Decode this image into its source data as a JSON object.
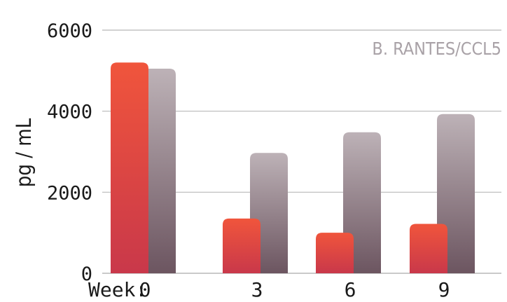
{
  "chart_data": {
    "type": "bar",
    "title": "B. RANTES/CCL5",
    "ylabel": "pg / mL",
    "xlabel": "Week:",
    "categories": [
      "0",
      "3",
      "6",
      "9"
    ],
    "series": [
      {
        "values": [
          5200,
          1350,
          1000,
          1220
        ]
      },
      {
        "values": [
          5050,
          2970,
          3480,
          3930
        ]
      }
    ],
    "ylim": [
      0,
      6000
    ],
    "yticks": [
      0,
      2000,
      4000,
      6000
    ],
    "grid": true,
    "colors": {
      "series1_top": "#f0553c",
      "series1_bottom": "#c9384a",
      "series2_top": "#bdb2b7",
      "series2_bottom": "#6c5560",
      "grid": "#b8b8b8"
    }
  }
}
